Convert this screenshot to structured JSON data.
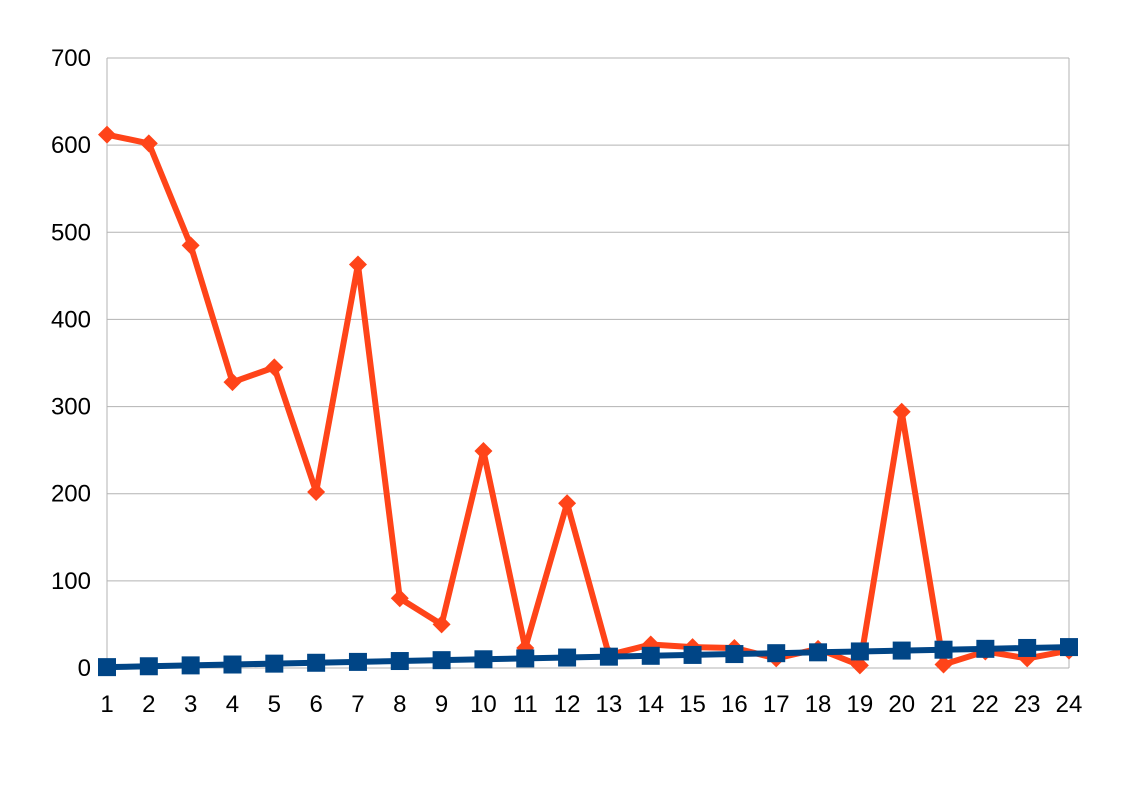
{
  "chart_data": {
    "type": "line",
    "title": "",
    "xlabel": "",
    "ylabel": "",
    "x": [
      "1",
      "2",
      "3",
      "4",
      "5",
      "6",
      "7",
      "8",
      "9",
      "10",
      "11",
      "12",
      "13",
      "14",
      "15",
      "16",
      "17",
      "18",
      "19",
      "20",
      "21",
      "22",
      "23",
      "24"
    ],
    "ylim": [
      0,
      700
    ],
    "yticks": [
      0,
      100,
      200,
      300,
      400,
      500,
      600,
      700
    ],
    "grid": true,
    "legend": "none",
    "series": [
      {
        "color": "#ff4419",
        "marker": "diamond-icon",
        "values": [
          612,
          602,
          485,
          328,
          345,
          202,
          463,
          80,
          50,
          249,
          23,
          189,
          15,
          27,
          24,
          23,
          11,
          22,
          3,
          294,
          4,
          19,
          11,
          20
        ]
      },
      {
        "color": "#004586",
        "marker": "square-icon",
        "values": [
          1,
          2,
          3,
          4,
          5,
          6,
          7,
          8,
          9,
          10,
          11,
          12,
          13,
          14,
          15,
          16,
          17,
          18,
          19,
          20,
          21,
          22,
          23,
          24
        ]
      }
    ]
  }
}
